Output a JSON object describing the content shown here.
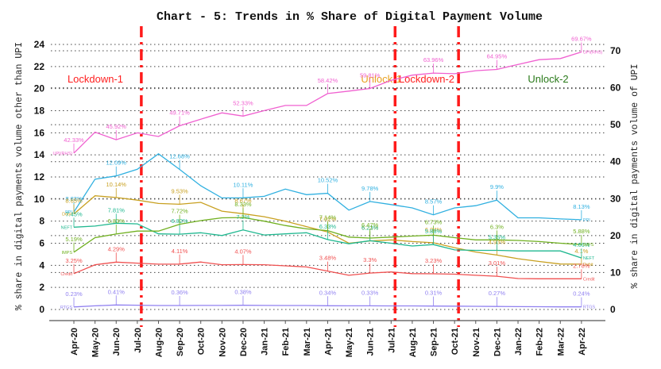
{
  "chart_data": {
    "type": "line",
    "title": "Chart - 5: Trends in % Share of Digital Payment Volume",
    "ylabel_left": "% share in digital payments volume other than UPI",
    "ylabel_right": "% share in digital payments volume of UPI",
    "xlabel": "",
    "ylim_left": [
      0,
      24
    ],
    "ylim_right": [
      0,
      70
    ],
    "yticks_left": [
      "0",
      "2",
      "4",
      "6",
      "8",
      "10",
      "12",
      "14",
      "16",
      "18",
      "20",
      "22",
      "24"
    ],
    "yticks_right": [
      "0",
      "10",
      "20",
      "30",
      "40",
      "50",
      "60",
      "70"
    ],
    "grid": true,
    "x": [
      "Apr-20",
      "May-20",
      "Jun-20",
      "Jul-20",
      "Aug-20",
      "Sep-20",
      "Oct-20",
      "Nov-20",
      "Dec-20",
      "Jan-21",
      "Feb-21",
      "Mar-21",
      "Apr-21",
      "May-21",
      "Jun-21",
      "Jul-21",
      "Aug-21",
      "Sep-21",
      "Oct-21",
      "Nov-21",
      "Dec-21",
      "Jan-22",
      "Feb-22",
      "Mar-22",
      "Apr-22"
    ],
    "phases": [
      {
        "label": "Lockdown-1",
        "color": "#ff2020",
        "start_index": 0,
        "boundary_after": "Jul-20"
      },
      {
        "label": "Unlock-1",
        "color": "#e8a020",
        "boundary_after": "Jul-21"
      },
      {
        "label": "Lockdown-2",
        "color": "#ff2020",
        "boundary_after": "Oct-21"
      },
      {
        "label": "Unlock-2",
        "color": "#2a7a1a"
      }
    ],
    "series": [
      {
        "name": "UPI(RHS)",
        "axis": "right",
        "color": "#f060d0",
        "start_label": "UPI(RHS)",
        "end_label": "UPI(RHS)",
        "values": [
          42.33,
          48.0,
          45.92,
          47.8,
          46.8,
          49.71,
          51.5,
          53.2,
          52.33,
          53.8,
          55.2,
          55.2,
          58.42,
          59.1,
          59.81,
          62.0,
          63.4,
          63.96,
          63.8,
          64.6,
          64.95,
          66.3,
          67.6,
          67.9,
          69.67
        ],
        "annotations": [
          {
            "index": 0,
            "text": "42.33%"
          },
          {
            "index": 2,
            "text": "45.92%"
          },
          {
            "index": 5,
            "text": "49.71%"
          },
          {
            "index": 8,
            "text": "52.33%"
          },
          {
            "index": 12,
            "text": "58.42%"
          },
          {
            "index": 14,
            "text": "59.81%"
          },
          {
            "index": 17,
            "text": "63.96%"
          },
          {
            "index": 20,
            "text": "64.95%"
          },
          {
            "index": 24,
            "text": "69.67%"
          }
        ]
      },
      {
        "name": "PPI",
        "axis": "left",
        "color": "#30b0e0",
        "start_label": "PPI",
        "end_label": "PPI",
        "values": [
          8.83,
          11.8,
          12.09,
          12.7,
          14.1,
          12.68,
          11.2,
          10.1,
          10.11,
          10.25,
          10.9,
          10.4,
          10.52,
          9.0,
          9.78,
          9.5,
          9.2,
          8.57,
          9.2,
          9.4,
          9.9,
          8.3,
          8.3,
          8.2,
          8.13
        ],
        "annotations": [
          {
            "index": 0,
            "text": "8.83%"
          },
          {
            "index": 2,
            "text": "12.09%"
          },
          {
            "index": 5,
            "text": "12.68%"
          },
          {
            "index": 8,
            "text": "10.11%"
          },
          {
            "index": 12,
            "text": "10.52%"
          },
          {
            "index": 14,
            "text": "9.78%"
          },
          {
            "index": 17,
            "text": "8.57%"
          },
          {
            "index": 20,
            "text": "9.9%"
          },
          {
            "index": 24,
            "text": "8.13%"
          }
        ]
      },
      {
        "name": "Debit",
        "axis": "left",
        "color": "#c8a020",
        "start_label": "Debit",
        "end_label": "Debit",
        "values": [
          8.65,
          10.3,
          10.14,
          9.9,
          9.6,
          9.53,
          9.7,
          8.9,
          8.67,
          8.4,
          8.0,
          7.5,
          7.02,
          6.0,
          6.21,
          6.3,
          6.15,
          6.04,
          5.6,
          5.2,
          4.93,
          4.6,
          4.35,
          4.12,
          4.1
        ],
        "annotations": [
          {
            "index": 0,
            "text": "8.65%"
          },
          {
            "index": 2,
            "text": "10.14%"
          },
          {
            "index": 5,
            "text": "9.53%"
          },
          {
            "index": 8,
            "text": "8.67%"
          },
          {
            "index": 12,
            "text": "7.02%"
          },
          {
            "index": 14,
            "text": "6.21%"
          },
          {
            "index": 17,
            "text": "6.04%"
          },
          {
            "index": 20,
            "text": "4.93%"
          },
          {
            "index": 24,
            "text": "4.1%"
          }
        ]
      },
      {
        "name": "NEFT",
        "axis": "left",
        "color": "#20b890",
        "start_label": "NEFT",
        "end_label": "NEFT",
        "values": [
          7.45,
          7.55,
          7.81,
          7.75,
          6.85,
          6.82,
          6.95,
          6.7,
          7.2,
          6.75,
          6.85,
          6.95,
          6.33,
          5.95,
          6.23,
          6.0,
          5.75,
          5.88,
          5.4,
          5.35,
          5.35,
          5.3,
          5.3,
          5.3,
          4.66
        ],
        "annotations": [
          {
            "index": 0,
            "text": "7.45%"
          },
          {
            "index": 2,
            "text": "7.81%"
          },
          {
            "index": 5,
            "text": "6.82%"
          },
          {
            "index": 8,
            "text": "7.2%"
          },
          {
            "index": 12,
            "text": "6.33%"
          },
          {
            "index": 14,
            "text": "6.23%"
          },
          {
            "index": 17,
            "text": "5.88%"
          },
          {
            "index": 20,
            "text": "5.35%"
          },
          {
            "index": 24,
            "text": "4.66%"
          }
        ]
      },
      {
        "name": "IMPS",
        "axis": "left",
        "color": "#70b020",
        "start_label": "IMPS",
        "end_label": "IMPS",
        "values": [
          5.19,
          6.5,
          6.83,
          7.1,
          7.1,
          7.72,
          8.05,
          8.3,
          8.33,
          8.0,
          7.6,
          7.3,
          7.14,
          6.55,
          6.47,
          6.55,
          6.65,
          6.73,
          6.5,
          6.3,
          6.3,
          6.25,
          6.15,
          6.0,
          5.88
        ],
        "annotations": [
          {
            "index": 0,
            "text": "5.19%"
          },
          {
            "index": 2,
            "text": "6.83%"
          },
          {
            "index": 5,
            "text": "7.72%"
          },
          {
            "index": 8,
            "text": "8.33%"
          },
          {
            "index": 12,
            "text": "7.14%"
          },
          {
            "index": 14,
            "text": "6.47%"
          },
          {
            "index": 17,
            "text": "6.73%"
          },
          {
            "index": 20,
            "text": "6.3%"
          },
          {
            "index": 24,
            "text": "5.88%"
          }
        ]
      },
      {
        "name": "Credit",
        "axis": "left",
        "color": "#f05050",
        "start_label": "Credit",
        "end_label": "Credit",
        "values": [
          3.25,
          4.05,
          4.29,
          4.2,
          4.1,
          4.11,
          4.3,
          4.05,
          4.07,
          4.05,
          3.95,
          3.85,
          3.48,
          3.1,
          3.3,
          3.4,
          3.25,
          3.23,
          3.2,
          3.1,
          3.01,
          2.8,
          2.78,
          2.78,
          2.78
        ],
        "annotations": [
          {
            "index": 0,
            "text": "3.25%"
          },
          {
            "index": 2,
            "text": "4.29%"
          },
          {
            "index": 5,
            "text": "4.11%"
          },
          {
            "index": 8,
            "text": "4.07%"
          },
          {
            "index": 12,
            "text": "3.48%"
          },
          {
            "index": 14,
            "text": "3.3%"
          },
          {
            "index": 17,
            "text": "3.23%"
          },
          {
            "index": 20,
            "text": "3.01%"
          },
          {
            "index": 24,
            "text": "2.78%"
          }
        ]
      },
      {
        "name": "RTGS",
        "axis": "left",
        "color": "#9080f0",
        "start_label": "RTGS",
        "end_label": "RTGS",
        "values": [
          0.23,
          0.33,
          0.41,
          0.39,
          0.36,
          0.36,
          0.37,
          0.37,
          0.38,
          0.37,
          0.36,
          0.36,
          0.34,
          0.33,
          0.33,
          0.32,
          0.32,
          0.31,
          0.3,
          0.29,
          0.27,
          0.26,
          0.25,
          0.24,
          0.24
        ],
        "annotations": [
          {
            "index": 0,
            "text": "0.23%"
          },
          {
            "index": 2,
            "text": "0.41%"
          },
          {
            "index": 5,
            "text": "0.36%"
          },
          {
            "index": 8,
            "text": "0.38%"
          },
          {
            "index": 12,
            "text": "0.34%"
          },
          {
            "index": 14,
            "text": "0.33%"
          },
          {
            "index": 17,
            "text": "0.31%"
          },
          {
            "index": 20,
            "text": "0.27%"
          },
          {
            "index": 24,
            "text": "0.24%"
          }
        ]
      }
    ]
  }
}
